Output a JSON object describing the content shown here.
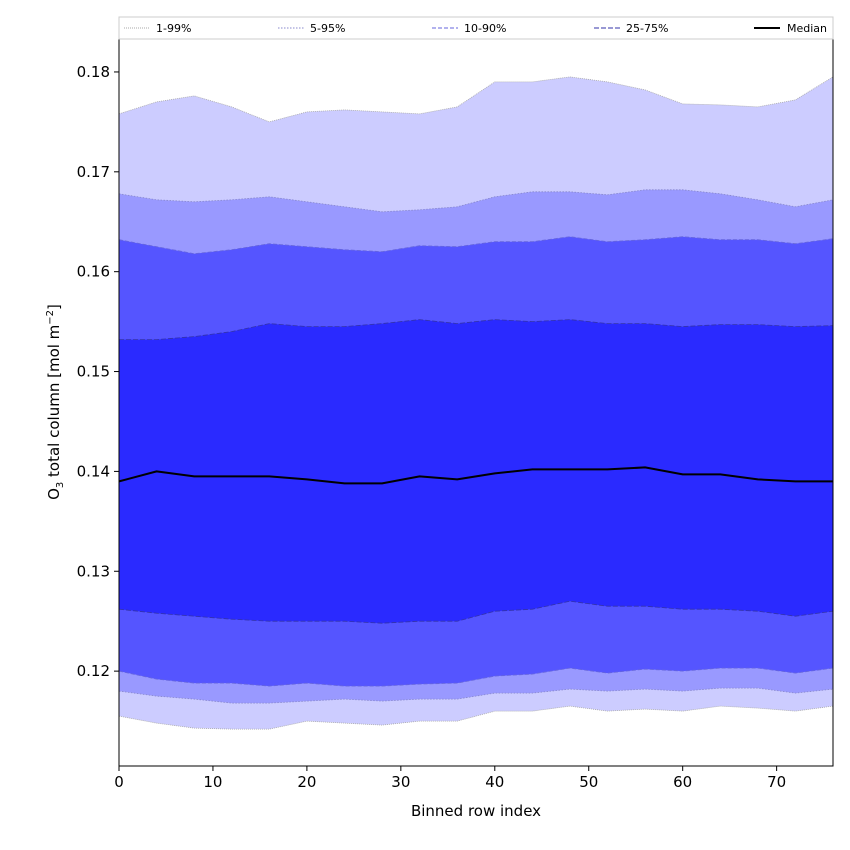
{
  "chart_data": {
    "type": "area",
    "title": "",
    "xlabel": "Binned row index",
    "ylabel_base": "O",
    "ylabel_sub": "3",
    "ylabel_rest": " total column [mol m",
    "ylabel_sup": "−2",
    "ylabel_end": "]",
    "xlim": [
      0,
      76
    ],
    "ylim": [
      0.1105,
      0.1833
    ],
    "xticks": [
      0,
      10,
      20,
      30,
      40,
      50,
      60,
      70
    ],
    "yticks": [
      0.12,
      0.13,
      0.14,
      0.15,
      0.16,
      0.17,
      0.18
    ],
    "xtick_labels": [
      "0",
      "10",
      "20",
      "30",
      "40",
      "50",
      "60",
      "70"
    ],
    "ytick_labels": [
      "0.12",
      "0.13",
      "0.14",
      "0.15",
      "0.16",
      "0.17",
      "0.18"
    ],
    "grid": false,
    "legend_position": "top",
    "x": [
      0,
      4,
      8,
      12,
      16,
      20,
      24,
      28,
      32,
      36,
      40,
      44,
      48,
      52,
      56,
      60,
      64,
      68,
      72,
      76
    ],
    "bands": [
      {
        "name": "1-99%",
        "color": "#ccccff",
        "line_color": "#aaaaaa",
        "dash": "1,1",
        "lower": [
          0.1155,
          0.1148,
          0.1143,
          0.1142,
          0.1142,
          0.115,
          0.1148,
          0.1146,
          0.115,
          0.115,
          0.116,
          0.116,
          0.1165,
          0.116,
          0.1162,
          0.116,
          0.1165,
          0.1163,
          0.116,
          0.1165
        ],
        "upper": [
          0.1758,
          0.177,
          0.1776,
          0.1765,
          0.175,
          0.176,
          0.1762,
          0.176,
          0.1758,
          0.1765,
          0.179,
          0.179,
          0.1795,
          0.179,
          0.1782,
          0.1768,
          0.1767,
          0.1765,
          0.1772,
          0.1795
        ]
      },
      {
        "name": "5-95%",
        "color": "#9999ff",
        "line_color": "#8888cc",
        "dash": "1.5,1.5",
        "lower": [
          0.118,
          0.1175,
          0.1172,
          0.1168,
          0.1168,
          0.117,
          0.1172,
          0.117,
          0.1172,
          0.1172,
          0.1178,
          0.1178,
          0.1182,
          0.118,
          0.1182,
          0.118,
          0.1183,
          0.1183,
          0.1178,
          0.1182
        ],
        "upper": [
          0.1678,
          0.1672,
          0.167,
          0.1672,
          0.1675,
          0.167,
          0.1665,
          0.166,
          0.1662,
          0.1665,
          0.1675,
          0.168,
          0.168,
          0.1677,
          0.1682,
          0.1682,
          0.1678,
          0.1672,
          0.1665,
          0.1672
        ]
      },
      {
        "name": "10-90%",
        "color": "#5555ff",
        "line_color": "#6666dd",
        "dash": "4,2",
        "lower": [
          0.12,
          0.1192,
          0.1188,
          0.1188,
          0.1185,
          0.1188,
          0.1185,
          0.1185,
          0.1187,
          0.1188,
          0.1195,
          0.1197,
          0.1203,
          0.1198,
          0.1202,
          0.12,
          0.1203,
          0.1203,
          0.1198,
          0.1203
        ],
        "upper": [
          0.1632,
          0.1625,
          0.1618,
          0.1622,
          0.1628,
          0.1625,
          0.1622,
          0.162,
          0.1626,
          0.1625,
          0.163,
          0.163,
          0.1635,
          0.163,
          0.1632,
          0.1635,
          0.1632,
          0.1632,
          0.1628,
          0.1633
        ]
      },
      {
        "name": "25-75%",
        "color": "#2a2aff",
        "line_color": "#3333aa",
        "dash": "5,2",
        "lower": [
          0.1262,
          0.1258,
          0.1255,
          0.1252,
          0.125,
          0.125,
          0.125,
          0.1248,
          0.125,
          0.125,
          0.126,
          0.1262,
          0.127,
          0.1265,
          0.1265,
          0.1262,
          0.1262,
          0.126,
          0.1255,
          0.126
        ],
        "upper": [
          0.1532,
          0.1532,
          0.1535,
          0.154,
          0.1548,
          0.1545,
          0.1545,
          0.1548,
          0.1552,
          0.1548,
          0.1552,
          0.155,
          0.1552,
          0.1548,
          0.1548,
          0.1545,
          0.1547,
          0.1547,
          0.1545,
          0.1546
        ]
      }
    ],
    "median": {
      "name": "Median",
      "color": "#000000",
      "values": [
        0.139,
        0.14,
        0.1395,
        0.1395,
        0.1395,
        0.1392,
        0.1388,
        0.1388,
        0.1395,
        0.1392,
        0.1398,
        0.1402,
        0.1402,
        0.1402,
        0.1404,
        0.1397,
        0.1397,
        0.1392,
        0.139,
        0.139
      ]
    },
    "legend": [
      "1-99%",
      "5-95%",
      "10-90%",
      "25-75%",
      "Median"
    ]
  }
}
